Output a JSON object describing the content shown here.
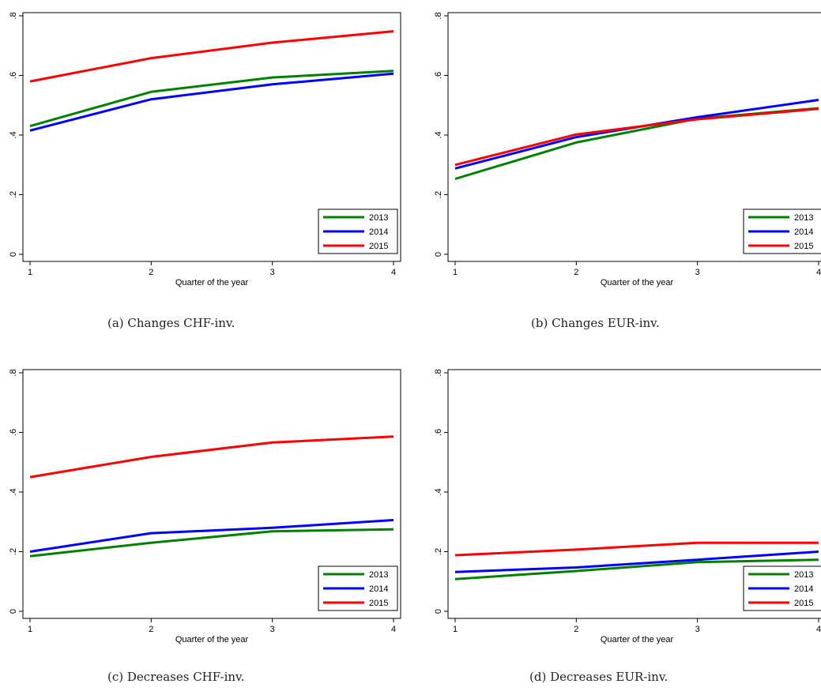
{
  "chart_data": [
    {
      "type": "line",
      "caption": "(a) Changes CHF-inv.",
      "xlabel": "Quarter of the year",
      "ylabel": "",
      "x": [
        1,
        2,
        3,
        4
      ],
      "xticks": [
        "1",
        "2",
        "3",
        "4"
      ],
      "yticks": [
        "0",
        ".2",
        ".4",
        ".6",
        ".8"
      ],
      "ylim": [
        0,
        0.8
      ],
      "xlim": [
        1,
        4
      ],
      "grid": false,
      "legend": "bottom-right",
      "series": [
        {
          "name": "2013",
          "color": "#008000",
          "values": [
            0.43,
            0.545,
            0.593,
            0.615
          ]
        },
        {
          "name": "2014",
          "color": "#0000ff",
          "values": [
            0.415,
            0.52,
            0.57,
            0.606
          ]
        },
        {
          "name": "2015",
          "color": "#ff0000",
          "values": [
            0.58,
            0.658,
            0.71,
            0.748
          ]
        }
      ]
    },
    {
      "type": "line",
      "caption": "(b) Changes EUR-inv.",
      "xlabel": "Quarter of the year",
      "ylabel": "",
      "x": [
        1,
        2,
        3,
        4
      ],
      "xticks": [
        "1",
        "2",
        "3",
        "4"
      ],
      "yticks": [
        "0",
        ".2",
        ".4",
        ".6",
        ".8"
      ],
      "ylim": [
        0,
        0.8
      ],
      "xlim": [
        1,
        4
      ],
      "grid": false,
      "legend": "bottom-right",
      "series": [
        {
          "name": "2013",
          "color": "#008000",
          "values": [
            0.253,
            0.375,
            0.455,
            0.49
          ]
        },
        {
          "name": "2014",
          "color": "#0000ff",
          "values": [
            0.288,
            0.393,
            0.46,
            0.518
          ]
        },
        {
          "name": "2015",
          "color": "#ff0000",
          "values": [
            0.3,
            0.402,
            0.453,
            0.488
          ]
        }
      ]
    },
    {
      "type": "line",
      "caption": "(c) Decreases CHF-inv.",
      "xlabel": "Quarter of the year",
      "ylabel": "",
      "x": [
        1,
        2,
        3,
        4
      ],
      "xticks": [
        "1",
        "2",
        "3",
        "4"
      ],
      "yticks": [
        "0",
        ".2",
        ".4",
        ".6",
        ".8"
      ],
      "ylim": [
        0,
        0.8
      ],
      "xlim": [
        1,
        4
      ],
      "grid": false,
      "legend": "bottom-right",
      "series": [
        {
          "name": "2013",
          "color": "#008000",
          "values": [
            0.185,
            0.23,
            0.268,
            0.275
          ]
        },
        {
          "name": "2014",
          "color": "#0000ff",
          "values": [
            0.2,
            0.262,
            0.28,
            0.306
          ]
        },
        {
          "name": "2015",
          "color": "#ff0000",
          "values": [
            0.45,
            0.518,
            0.566,
            0.586
          ]
        }
      ]
    },
    {
      "type": "line",
      "caption": "(d) Decreases EUR-inv.",
      "xlabel": "Quarter of the year",
      "ylabel": "",
      "x": [
        1,
        2,
        3,
        4
      ],
      "xticks": [
        "1",
        "2",
        "3",
        "4"
      ],
      "yticks": [
        "0",
        ".2",
        ".4",
        ".6",
        ".8"
      ],
      "ylim": [
        0,
        0.8
      ],
      "xlim": [
        1,
        4
      ],
      "grid": false,
      "legend": "bottom-right",
      "series": [
        {
          "name": "2013",
          "color": "#008000",
          "values": [
            0.108,
            0.135,
            0.165,
            0.173
          ]
        },
        {
          "name": "2014",
          "color": "#0000ff",
          "values": [
            0.132,
            0.147,
            0.173,
            0.2
          ]
        },
        {
          "name": "2015",
          "color": "#ff0000",
          "values": [
            0.188,
            0.207,
            0.23,
            0.23
          ]
        }
      ]
    }
  ]
}
